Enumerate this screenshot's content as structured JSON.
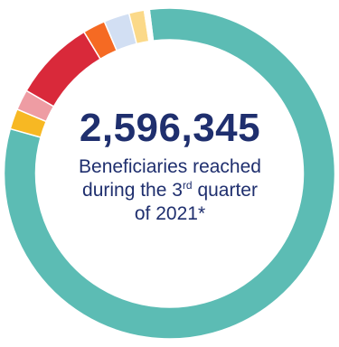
{
  "chart_data": {
    "type": "pie",
    "title": "",
    "categories": [
      "",
      "",
      "",
      "",
      "",
      "",
      "",
      ""
    ],
    "values": [
      81.3,
      2.0,
      2.0,
      8.0,
      2.2,
      2.5,
      1.5,
      0.5
    ],
    "colors": [
      "#5cbcb4",
      "#f7b823",
      "#ee9ca3",
      "#d9293a",
      "#f56a23",
      "#d2dff3",
      "#fbd989",
      "#ffffff"
    ],
    "start_angle_deg": -7,
    "donut": true
  },
  "center": {
    "value": "2,596,345",
    "line1": "Beneficiaries reached",
    "line2_prefix": "during the 3",
    "line2_sup": "rd",
    "line2_suffix": " quarter",
    "line3": "of 2021*"
  }
}
